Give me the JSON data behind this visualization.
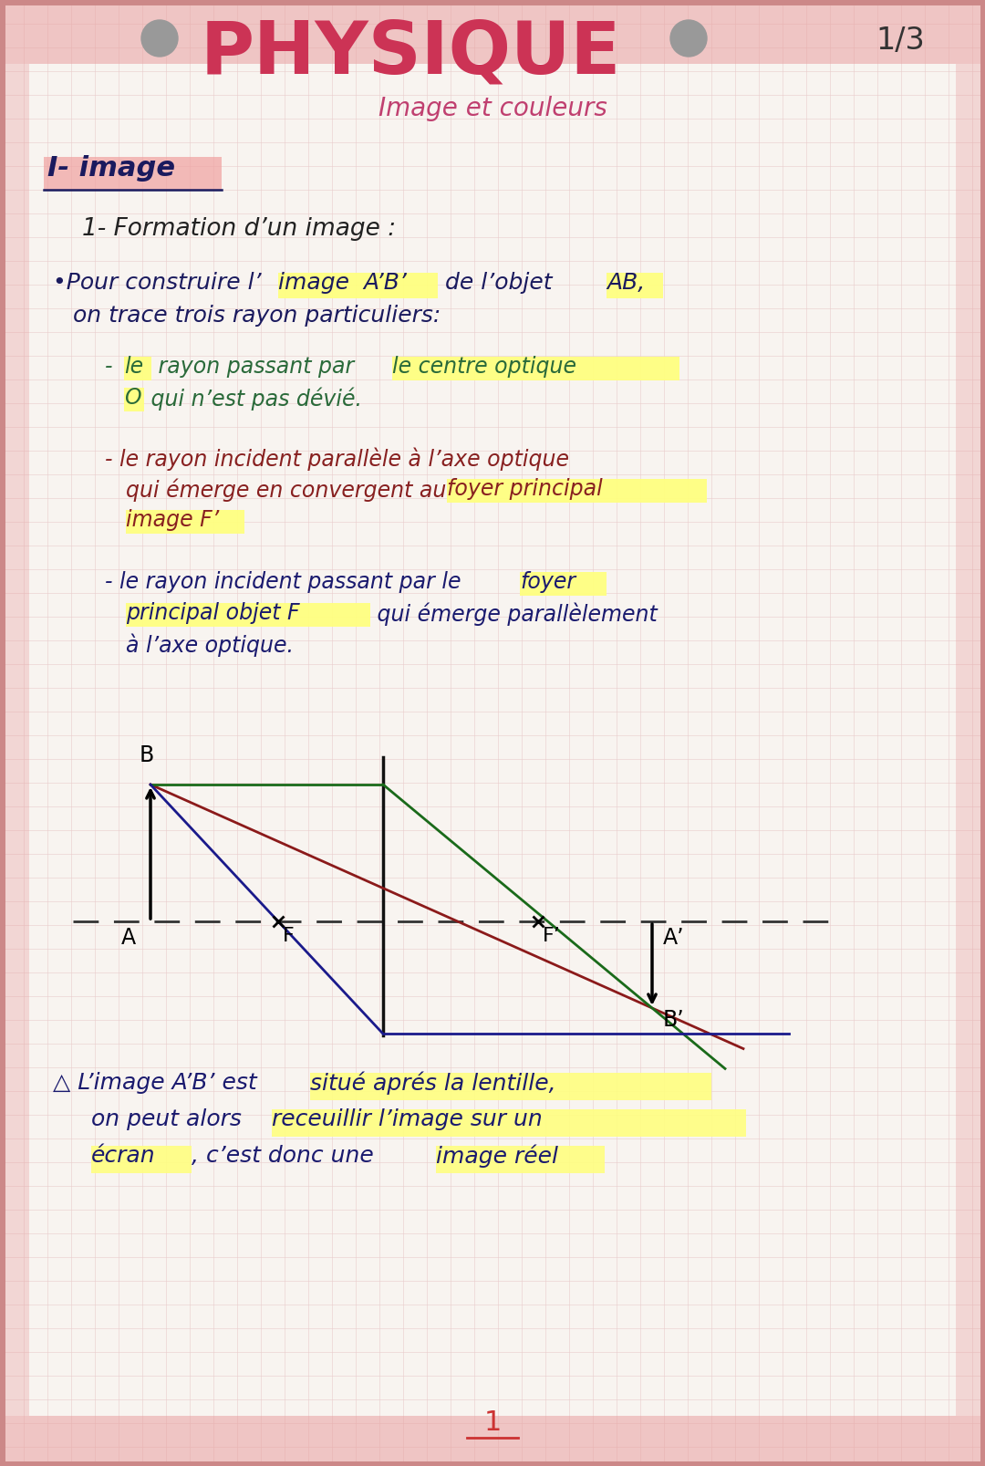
{
  "bg_color": "#f8f4f0",
  "border_color": "#d88888",
  "grid_color": "#e8cccc",
  "title": "PHYSIQUE",
  "page_num": "1/3",
  "subtitle": "Image et couleurs",
  "section": "I- image",
  "page_footer": "1",
  "fig_w": 10.8,
  "fig_h": 16.07,
  "dpi": 100
}
